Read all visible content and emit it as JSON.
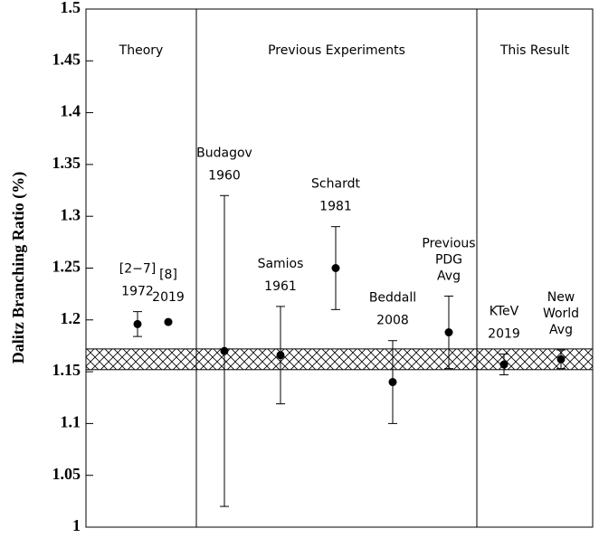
{
  "chart_data": {
    "type": "errorpoint",
    "ylabel": "Dalitz Branching Ratio (%)",
    "sections": [
      "Theory",
      "Previous Experiments",
      "This Result"
    ],
    "categories": [
      [
        "[2−7]",
        "1972"
      ],
      [
        "[8]",
        "2019"
      ],
      [
        "Budagov",
        "1960"
      ],
      [
        "Samios",
        "1961"
      ],
      [
        "Schardt",
        "1981"
      ],
      [
        "Beddall",
        "2008"
      ],
      [
        "Previous",
        "PDG",
        "Avg"
      ],
      [
        "KTeV",
        "2019"
      ],
      [
        "New",
        "World",
        "Avg"
      ]
    ],
    "values": [
      1.196,
      1.198,
      1.17,
      1.166,
      1.25,
      1.14,
      1.188,
      1.157,
      1.162
    ],
    "errors": [
      0.012,
      null,
      0.15,
      0.047,
      0.04,
      0.04,
      0.035,
      0.01,
      0.009
    ],
    "band": [
      1.152,
      1.172
    ],
    "ylim": [
      1,
      1.5
    ],
    "yticks": [
      1,
      1.05,
      1.1,
      1.15,
      1.2,
      1.25,
      1.3,
      1.35,
      1.4,
      1.45,
      1.5
    ]
  }
}
